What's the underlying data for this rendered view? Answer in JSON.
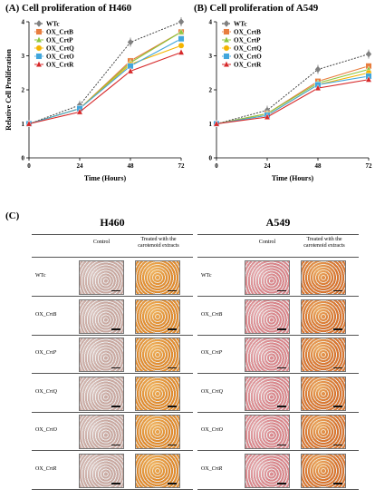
{
  "panel_a": {
    "letter": "(A)",
    "title": "Cell proliferation of H460"
  },
  "panel_b": {
    "letter": "(B)",
    "title": "Cell proliferation of A549"
  },
  "panel_c": {
    "letter": "(C)"
  },
  "chart_data": [
    {
      "type": "line",
      "title": "Cell proliferation of H460",
      "xlabel": "Time (Hours)",
      "ylabel": "Relative Cell Proliferation",
      "x": [
        0,
        24,
        48,
        72
      ],
      "xlim": [
        0,
        72
      ],
      "ylim": [
        0,
        4
      ],
      "yticks": [
        0,
        1,
        2,
        3,
        4
      ],
      "legend_position": "top-left",
      "series": [
        {
          "name": "WTc",
          "values": [
            1,
            1.55,
            3.4,
            4.0
          ],
          "color": "#808080",
          "marker": "diamond",
          "dash": true
        },
        {
          "name": "OX_CrtB",
          "values": [
            1,
            1.45,
            2.85,
            3.7
          ],
          "color": "#e87d3e",
          "marker": "square"
        },
        {
          "name": "OX_CrtP",
          "values": [
            1,
            1.45,
            2.8,
            3.7
          ],
          "color": "#8cc63f",
          "marker": "triangle"
        },
        {
          "name": "OX_CrtQ",
          "values": [
            1,
            1.45,
            2.75,
            3.3
          ],
          "color": "#f4b400",
          "marker": "circle"
        },
        {
          "name": "OX_CrtO",
          "values": [
            1,
            1.45,
            2.7,
            3.5
          ],
          "color": "#41a6dc",
          "marker": "square"
        },
        {
          "name": "OX_CrtR",
          "values": [
            1,
            1.35,
            2.55,
            3.1
          ],
          "color": "#d62728",
          "marker": "triangle"
        }
      ]
    },
    {
      "type": "line",
      "title": "Cell proliferation of A549",
      "xlabel": "Time (Hours)",
      "ylabel": "",
      "x": [
        0,
        24,
        48,
        72
      ],
      "xlim": [
        0,
        72
      ],
      "ylim": [
        0,
        4
      ],
      "yticks": [
        0,
        1,
        2,
        3,
        4
      ],
      "legend_position": "top-left",
      "series": [
        {
          "name": "WTc",
          "values": [
            1,
            1.4,
            2.6,
            3.05
          ],
          "color": "#808080",
          "marker": "diamond",
          "dash": true
        },
        {
          "name": "OX_CrtB",
          "values": [
            1,
            1.3,
            2.25,
            2.7
          ],
          "color": "#e87d3e",
          "marker": "square"
        },
        {
          "name": "OX_CrtP",
          "values": [
            1,
            1.3,
            2.2,
            2.6
          ],
          "color": "#8cc63f",
          "marker": "triangle"
        },
        {
          "name": "OX_CrtQ",
          "values": [
            1,
            1.25,
            2.15,
            2.5
          ],
          "color": "#f4b400",
          "marker": "circle"
        },
        {
          "name": "OX_CrtO",
          "values": [
            1,
            1.25,
            2.15,
            2.4
          ],
          "color": "#41a6dc",
          "marker": "square"
        },
        {
          "name": "OX_CrtR",
          "values": [
            1,
            1.2,
            2.05,
            2.3
          ],
          "color": "#d62728",
          "marker": "triangle"
        }
      ]
    }
  ],
  "micrographs": {
    "groups": [
      {
        "title": "H460",
        "control_label": "Control",
        "treated_label": "Treated with the carotenoid extracts"
      },
      {
        "title": "A549",
        "control_label": "Control",
        "treated_label": "Treated with the carotenoid extracts"
      }
    ],
    "rows": [
      {
        "prefix": "WTc",
        "suffix": ""
      },
      {
        "prefix": "OX_",
        "suffix": "CrtB"
      },
      {
        "prefix": "OX_",
        "suffix": "CrtP"
      },
      {
        "prefix": "OX_",
        "suffix": "CrtQ"
      },
      {
        "prefix": "OX_",
        "suffix": "CrtO"
      },
      {
        "prefix": "OX_",
        "suffix": "CrtR"
      }
    ],
    "colors": {
      "h460_control": "#c9a8a0",
      "h460_treated": "#e08a2c",
      "a549_control": "#d9858a",
      "a549_treated": "#d8742e"
    }
  }
}
